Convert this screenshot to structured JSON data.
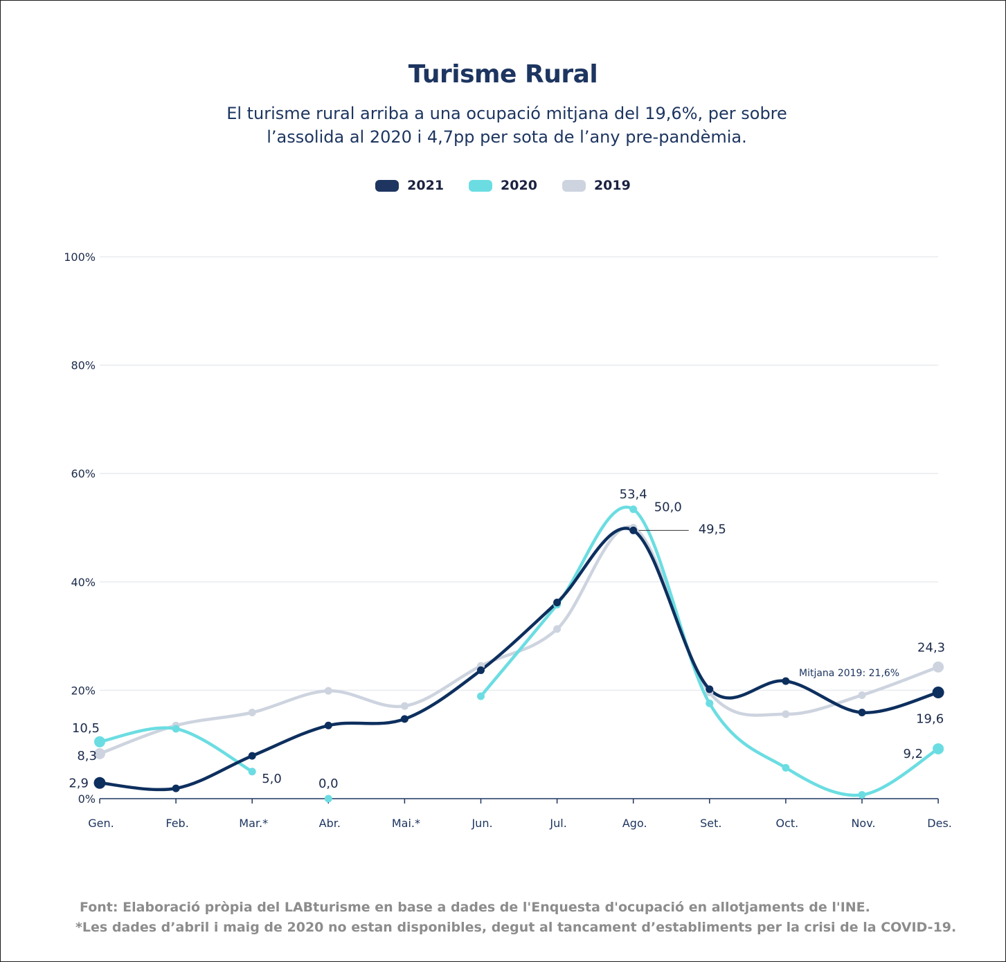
{
  "chart_data": {
    "type": "line",
    "title": "Turisme Rural",
    "subtitle_lines": [
      "El turisme rural arriba a una ocupació mitjana del 19,6%, per sobre",
      "l’assolida al 2020 i 4,7pp per sota de l’any pre-pandèmia."
    ],
    "categories": [
      "Gen.",
      "Feb.",
      "Mar.*",
      "Abr.",
      "Mai.*",
      "Jun.",
      "Jul.",
      "Ago.",
      "Set.",
      "Oct.",
      "Nov.",
      "Des."
    ],
    "ylim": [
      0,
      100
    ],
    "yticks": [
      0,
      20,
      40,
      60,
      80,
      100
    ],
    "ytick_labels": [
      "0%",
      "20%",
      "40%",
      "60%",
      "80%",
      "100%"
    ],
    "grid": true,
    "legend_position": "top-center",
    "series": [
      {
        "name": "2019",
        "color": "#cdd4df",
        "values": [
          8.3,
          13.5,
          15.9,
          19.9,
          17.1,
          24.5,
          31.3,
          50.0,
          19.6,
          15.6,
          19.1,
          24.3
        ]
      },
      {
        "name": "2020",
        "color": "#6bdde2",
        "values": [
          10.5,
          12.9,
          5.0,
          0.0,
          null,
          18.9,
          35.8,
          53.4,
          17.6,
          5.7,
          0.7,
          9.2
        ],
        "segments": [
          [
            0,
            2
          ],
          [
            3,
            3
          ],
          [
            5,
            11
          ]
        ]
      },
      {
        "name": "2021",
        "color": "#0d2f5e",
        "values": [
          2.9,
          1.9,
          7.9,
          13.5,
          14.7,
          23.7,
          36.2,
          49.5,
          20.2,
          21.7,
          15.9,
          19.6
        ]
      }
    ],
    "data_labels": [
      {
        "series": "2019",
        "index": 0,
        "text": "8,3"
      },
      {
        "series": "2019",
        "index": 7,
        "text": "50,0"
      },
      {
        "series": "2019",
        "index": 11,
        "text": "24,3"
      },
      {
        "series": "2020",
        "index": 0,
        "text": "10,5"
      },
      {
        "series": "2020",
        "index": 2,
        "text": "5,0"
      },
      {
        "series": "2020",
        "index": 3,
        "text": "0,0"
      },
      {
        "series": "2020",
        "index": 7,
        "text": "53,4"
      },
      {
        "series": "2020",
        "index": 11,
        "text": "9,2"
      },
      {
        "series": "2021",
        "index": 0,
        "text": "2,9"
      },
      {
        "series": "2021",
        "index": 7,
        "text": "49,5"
      },
      {
        "series": "2021",
        "index": 11,
        "text": "19,6"
      }
    ],
    "annotation": "Mitjana 2019: 21,6%"
  },
  "footer": {
    "source": "Font: Elaboració pròpia del LABturisme en base a dades de l'Enquesta d'ocupació en allotjaments de l'INE.",
    "note": "*Les dades d’abril i maig de 2020 no estan disponibles, degut al tancament d’establiments per la crisi de la COVID-19."
  }
}
